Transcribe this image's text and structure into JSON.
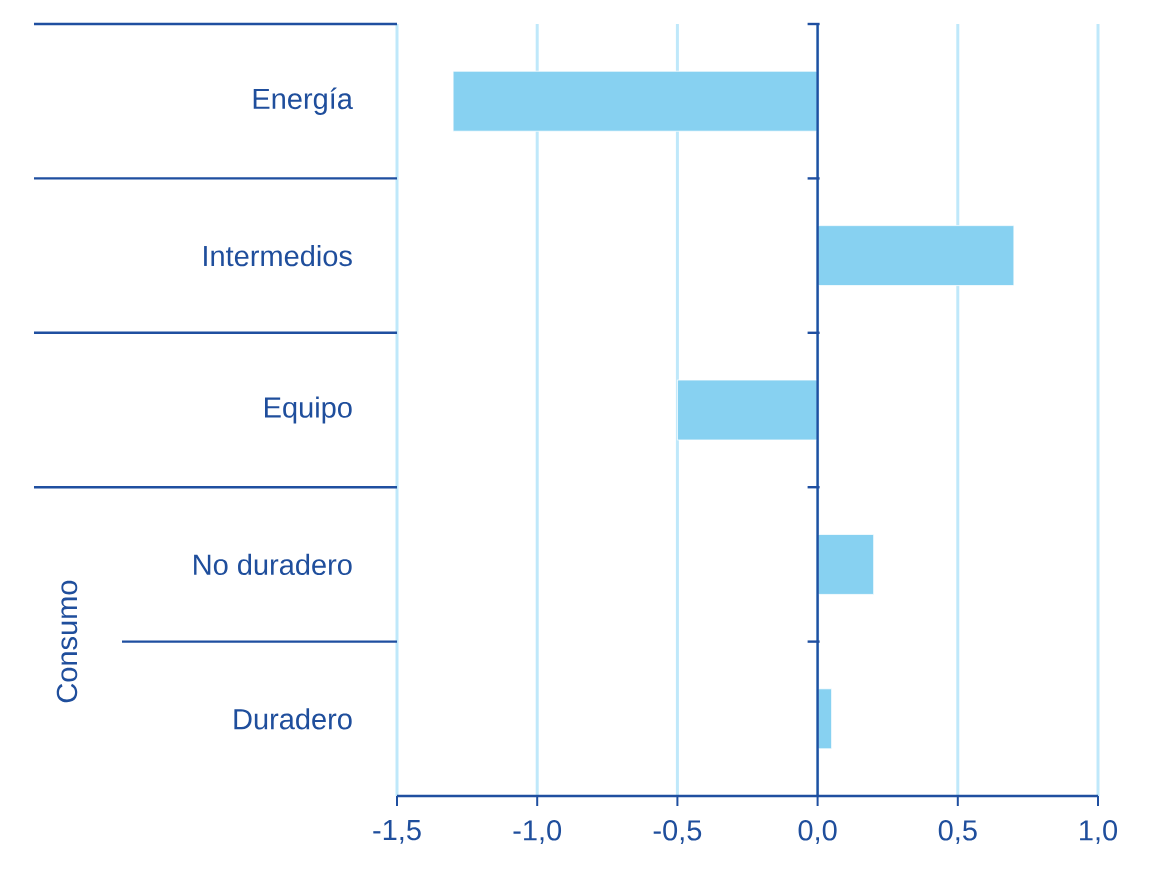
{
  "chart_data": {
    "type": "bar",
    "orientation": "horizontal",
    "categories": [
      "Energía",
      "Intermedios",
      "Equipo",
      "No duradero",
      "Duradero"
    ],
    "values": [
      -1.3,
      0.7,
      -0.5,
      0.2,
      0.05
    ],
    "color": "#87d1f1",
    "xlim": [
      -1.5,
      1.0
    ],
    "xticks": [
      {
        "value": -1.5,
        "label": "-1,5"
      },
      {
        "value": -1.0,
        "label": "-1,0"
      },
      {
        "value": -0.5,
        "label": "-0,5"
      },
      {
        "value": 0.0,
        "label": "0,0"
      },
      {
        "value": 0.5,
        "label": "0,5"
      },
      {
        "value": 1.0,
        "label": "1,0"
      }
    ],
    "grid": "x",
    "ref_lines": [
      {
        "axis": "x",
        "value": 0,
        "color": "#1f4fa0"
      }
    ],
    "annotations": [
      "Consumo"
    ]
  }
}
